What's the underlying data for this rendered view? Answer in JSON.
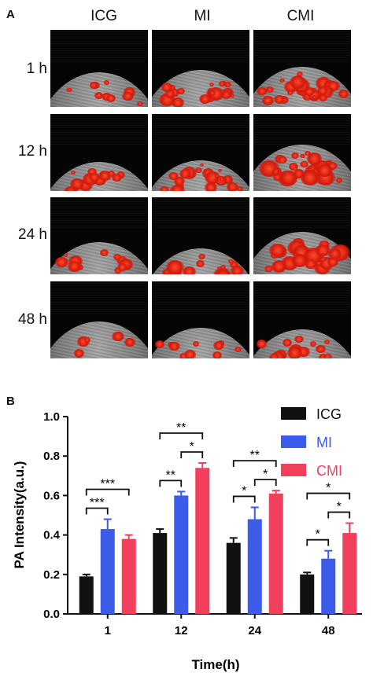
{
  "panel_a": {
    "label": "A",
    "columns": [
      "ICG",
      "MI",
      "CMI"
    ],
    "rows": [
      "1 h",
      "12 h",
      "24 h",
      "48 h"
    ]
  },
  "panel_b": {
    "label": "B"
  },
  "colors": {
    "ICG": "#111111",
    "MI": "#3b5be8",
    "CMI": "#f23f5c"
  },
  "chart_data": {
    "type": "bar",
    "title": "",
    "xlabel": "Time(h)",
    "ylabel": "PA Intensity(a.u.)",
    "ylim": [
      0.0,
      1.0
    ],
    "yticks": [
      "0.0",
      "0.2",
      "0.4",
      "0.6",
      "0.8",
      "1.0"
    ],
    "categories": [
      "1",
      "12",
      "24",
      "48"
    ],
    "series": [
      {
        "name": "ICG",
        "values": [
          0.19,
          0.41,
          0.36,
          0.2
        ],
        "errors": [
          0.01,
          0.02,
          0.025,
          0.01
        ]
      },
      {
        "name": "MI",
        "values": [
          0.43,
          0.6,
          0.48,
          0.28
        ],
        "errors": [
          0.05,
          0.02,
          0.06,
          0.04
        ]
      },
      {
        "name": "CMI",
        "values": [
          0.38,
          0.74,
          0.61,
          0.41
        ],
        "errors": [
          0.02,
          0.025,
          0.015,
          0.05
        ]
      }
    ],
    "legend_position": "top-right",
    "significance": [
      {
        "category": 0,
        "from": "ICG",
        "to": "MI",
        "label": "***"
      },
      {
        "category": 0,
        "from": "ICG",
        "to": "CMI",
        "label": "***"
      },
      {
        "category": 1,
        "from": "ICG",
        "to": "MI",
        "label": "**"
      },
      {
        "category": 1,
        "from": "MI",
        "to": "CMI",
        "label": "*"
      },
      {
        "category": 1,
        "from": "ICG",
        "to": "CMI",
        "label": "**"
      },
      {
        "category": 2,
        "from": "ICG",
        "to": "MI",
        "label": "*"
      },
      {
        "category": 2,
        "from": "MI",
        "to": "CMI",
        "label": "*"
      },
      {
        "category": 2,
        "from": "ICG",
        "to": "CMI",
        "label": "**"
      },
      {
        "category": 3,
        "from": "ICG",
        "to": "MI",
        "label": "*"
      },
      {
        "category": 3,
        "from": "MI",
        "to": "CMI",
        "label": "*"
      },
      {
        "category": 3,
        "from": "ICG",
        "to": "CMI",
        "label": "*"
      }
    ]
  }
}
